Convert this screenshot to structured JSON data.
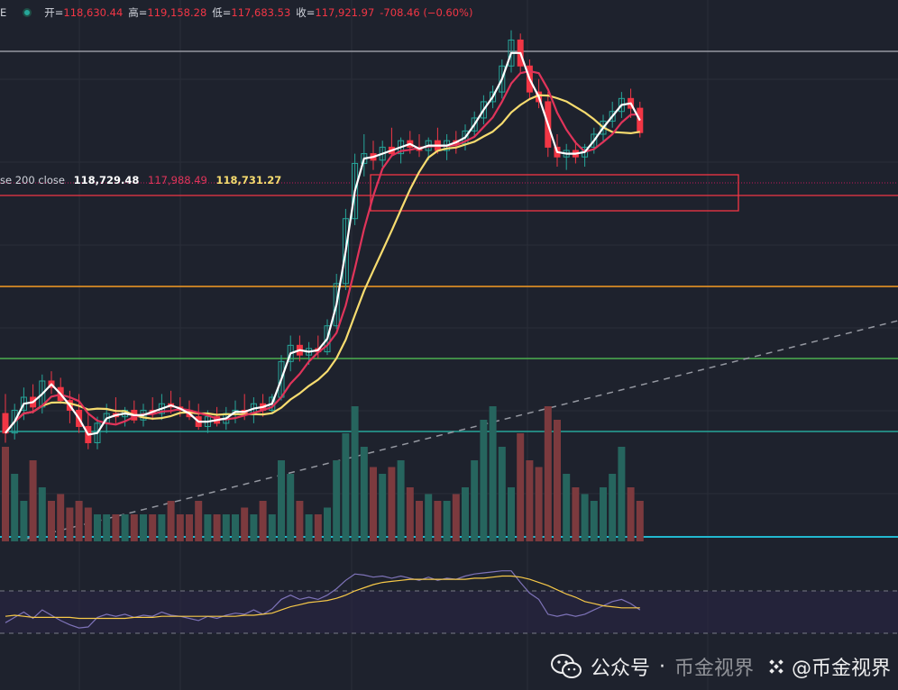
{
  "header": {
    "symbol_tail": "E",
    "open_label": "开=",
    "open": "118,630.44",
    "high_label": "高=",
    "high": "119,158.28",
    "low_label": "低=",
    "low": "117,683.53",
    "close_label": "收=",
    "close": "117,921.97",
    "change": "-708.46 (−0.60%)"
  },
  "ma_legend": {
    "name": "se 200 close",
    "v1": "118,729.48",
    "v2": "117,988.49",
    "v3": "118,731.27"
  },
  "watermark": {
    "channel": "公众号",
    "separator": "·",
    "name": "币金视界",
    "handle": "@币金视界"
  },
  "chart_data": {
    "type": "candlestick",
    "colors": {
      "up": "#26a69a",
      "down": "#f23645",
      "ma_fast": "#ffffff",
      "ma_mid": "#e0345a",
      "ma_slow": "#f7dc6f",
      "rsi": "#7e73b8",
      "rsi_ma": "#f7c948"
    },
    "ylim": [
      106500,
      121200
    ],
    "candles": [
      [
        109300,
        109900,
        108400,
        108700
      ],
      [
        108700,
        109600,
        108500,
        109400
      ],
      [
        109400,
        110100,
        109100,
        109800
      ],
      [
        109800,
        110200,
        109300,
        109500
      ],
      [
        109500,
        110500,
        109300,
        110300
      ],
      [
        110300,
        110600,
        109900,
        110100
      ],
      [
        110100,
        110400,
        109600,
        109700
      ],
      [
        109700,
        110000,
        109000,
        109400
      ],
      [
        109400,
        109900,
        108700,
        108900
      ],
      [
        108900,
        109300,
        108200,
        108400
      ],
      [
        108400,
        109200,
        108200,
        109000
      ],
      [
        109000,
        109600,
        108700,
        109300
      ],
      [
        109300,
        109800,
        109000,
        109200
      ],
      [
        109200,
        109500,
        108900,
        109400
      ],
      [
        109400,
        109700,
        109000,
        109100
      ],
      [
        109100,
        109600,
        108900,
        109400
      ],
      [
        109400,
        109800,
        109100,
        109300
      ],
      [
        109300,
        109900,
        109100,
        109600
      ],
      [
        109600,
        110000,
        109300,
        109500
      ],
      [
        109500,
        109800,
        109200,
        109400
      ],
      [
        109400,
        109700,
        109100,
        109200
      ],
      [
        109200,
        109600,
        108800,
        108900
      ],
      [
        108900,
        109400,
        108700,
        109200
      ],
      [
        109200,
        109500,
        108900,
        109000
      ],
      [
        109000,
        109500,
        108800,
        109300
      ],
      [
        109300,
        109700,
        109000,
        109400
      ],
      [
        109400,
        109900,
        109100,
        109300
      ],
      [
        109300,
        109800,
        109000,
        109600
      ],
      [
        109600,
        109900,
        109200,
        109400
      ],
      [
        109400,
        109900,
        109300,
        109800
      ],
      [
        109800,
        111100,
        109700,
        110900
      ],
      [
        110900,
        111700,
        110600,
        111400
      ],
      [
        111400,
        111700,
        110900,
        111100
      ],
      [
        111100,
        111500,
        110800,
        111300
      ],
      [
        111300,
        111700,
        111000,
        111200
      ],
      [
        111200,
        112200,
        111100,
        112000
      ],
      [
        112000,
        113600,
        111900,
        113300
      ],
      [
        113300,
        115600,
        113100,
        115300
      ],
      [
        115300,
        117300,
        115100,
        117000
      ],
      [
        117000,
        117900,
        116600,
        117300
      ],
      [
        117300,
        117700,
        116800,
        117100
      ],
      [
        117100,
        117700,
        116900,
        117500
      ],
      [
        117500,
        118100,
        117200,
        117300
      ],
      [
        117300,
        117800,
        117000,
        117700
      ],
      [
        117700,
        118000,
        117300,
        117500
      ],
      [
        117500,
        117900,
        117200,
        117400
      ],
      [
        117400,
        117800,
        117100,
        117700
      ],
      [
        117700,
        118100,
        117300,
        117400
      ],
      [
        117400,
        117900,
        117100,
        117700
      ],
      [
        117700,
        118000,
        117300,
        117600
      ],
      [
        117600,
        118200,
        117400,
        118000
      ],
      [
        118000,
        118600,
        117800,
        118400
      ],
      [
        118400,
        119100,
        118200,
        118900
      ],
      [
        118900,
        119400,
        118700,
        119200
      ],
      [
        119200,
        120200,
        119000,
        120000
      ],
      [
        120000,
        121100,
        119800,
        120800
      ],
      [
        120800,
        121000,
        119800,
        120000
      ],
      [
        120000,
        120200,
        119000,
        119200
      ],
      [
        119200,
        119600,
        118700,
        118900
      ],
      [
        118900,
        119200,
        117200,
        117500
      ],
      [
        117500,
        117900,
        116900,
        117200
      ],
      [
        117200,
        117600,
        116800,
        117400
      ],
      [
        117400,
        117700,
        117000,
        117200
      ],
      [
        117200,
        117600,
        116900,
        117500
      ],
      [
        117500,
        118100,
        117300,
        117900
      ],
      [
        117900,
        118500,
        117700,
        118300
      ],
      [
        118300,
        118900,
        118100,
        118600
      ],
      [
        118600,
        119200,
        118400,
        119000
      ],
      [
        119000,
        119300,
        118400,
        118700
      ],
      [
        118700,
        118900,
        117800,
        117950
      ]
    ],
    "volumes": [
      70,
      50,
      30,
      60,
      40,
      30,
      35,
      25,
      30,
      25,
      20,
      20,
      20,
      20,
      20,
      20,
      20,
      20,
      30,
      20,
      20,
      30,
      20,
      20,
      20,
      20,
      25,
      20,
      30,
      20,
      60,
      50,
      30,
      20,
      20,
      25,
      60,
      80,
      100,
      70,
      55,
      50,
      55,
      60,
      40,
      30,
      35,
      30,
      30,
      35,
      40,
      60,
      90,
      100,
      70,
      40,
      80,
      60,
      55,
      100,
      90,
      50,
      40,
      35,
      30,
      40,
      50,
      70,
      40,
      30
    ],
    "rsi": [
      40,
      45,
      50,
      44,
      52,
      47,
      42,
      38,
      35,
      36,
      45,
      48,
      46,
      48,
      45,
      47,
      46,
      50,
      47,
      46,
      44,
      42,
      46,
      44,
      47,
      49,
      48,
      52,
      48,
      53,
      62,
      66,
      62,
      64,
      62,
      66,
      72,
      80,
      86,
      85,
      83,
      84,
      82,
      84,
      82,
      80,
      83,
      80,
      82,
      81,
      84,
      86,
      87,
      88,
      89,
      89,
      78,
      68,
      62,
      48,
      46,
      48,
      46,
      48,
      52,
      56,
      60,
      62,
      58,
      52
    ],
    "rsi_ma": [
      46,
      47,
      46,
      45,
      45,
      45,
      45,
      45,
      44,
      44,
      44,
      44,
      44,
      44,
      45,
      45,
      45,
      46,
      46,
      46,
      46,
      46,
      46,
      46,
      46,
      46,
      47,
      47,
      48,
      49,
      52,
      55,
      57,
      59,
      60,
      61,
      63,
      66,
      70,
      73,
      76,
      78,
      79,
      80,
      81,
      81,
      81,
      81,
      81,
      81,
      81,
      82,
      82,
      83,
      84,
      84,
      83,
      81,
      78,
      75,
      71,
      67,
      64,
      60,
      58,
      56,
      55,
      54,
      54,
      54
    ]
  }
}
